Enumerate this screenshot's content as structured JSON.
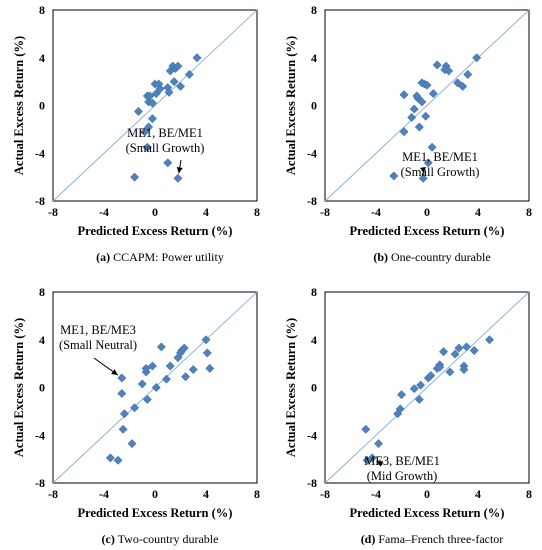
{
  "chart_data": [
    {
      "type": "scatter",
      "panel_letter": "(a)",
      "caption": "CCAPM: Power utility",
      "xlabel": "Predicted Excess Return (%)",
      "ylabel": "Actual Excess Return (%)",
      "xlim": [
        -8,
        8
      ],
      "ylim": [
        -8,
        8
      ],
      "x_ticks": [
        "-8",
        "-4",
        "0",
        "4",
        "8"
      ],
      "y_ticks": [
        "8",
        "4",
        "0",
        "-4",
        "-8"
      ],
      "grid": false,
      "diagonal_line": true,
      "marker_color": "#4f81bd",
      "line_color": "#8db3d9",
      "annotation": {
        "lines": [
          "ME1, BE/ME1",
          "(Small Growth)"
        ],
        "target": [
          1.8,
          -6.1
        ]
      },
      "points": [
        [
          -1.6,
          -6.0
        ],
        [
          1.0,
          -4.8
        ],
        [
          1.8,
          -6.1
        ],
        [
          -1.3,
          -0.5
        ],
        [
          -0.8,
          -2.2
        ],
        [
          -0.5,
          -1.8
        ],
        [
          -0.2,
          -1.1
        ],
        [
          -0.6,
          -3.5
        ],
        [
          -0.6,
          0.8
        ],
        [
          -0.5,
          0.3
        ],
        [
          -0.4,
          0.8
        ],
        [
          -0.2,
          0.2
        ],
        [
          0.0,
          1.8
        ],
        [
          0.3,
          1.8
        ],
        [
          0.4,
          1.4
        ],
        [
          1.0,
          1.5
        ],
        [
          1.1,
          1.1
        ],
        [
          1.2,
          2.9
        ],
        [
          1.4,
          3.3
        ],
        [
          1.5,
          2.0
        ],
        [
          1.6,
          3.1
        ],
        [
          1.8,
          3.3
        ],
        [
          2.0,
          1.6
        ],
        [
          2.7,
          2.6
        ],
        [
          3.3,
          4.0
        ],
        [
          0.1,
          1.0
        ]
      ]
    },
    {
      "type": "scatter",
      "panel_letter": "(b)",
      "caption": "One-country durable",
      "xlabel": "Predicted Excess Return (%)",
      "ylabel": "Actual Excess Return (%)",
      "xlim": [
        -8,
        8
      ],
      "ylim": [
        -8,
        8
      ],
      "x_ticks": [
        "-8",
        "-4",
        "0",
        "4",
        "8"
      ],
      "y_ticks": [
        "8",
        "4",
        "0",
        "-4",
        "-8"
      ],
      "grid": false,
      "diagonal_line": true,
      "marker_color": "#4f81bd",
      "line_color": "#8db3d9",
      "annotation": {
        "lines": [
          "ME1, BE/ME1",
          "(Small Growth)"
        ],
        "target": [
          -0.2,
          -6.1
        ]
      },
      "points": [
        [
          -2.6,
          -5.9
        ],
        [
          -0.3,
          -6.1
        ],
        [
          0.4,
          -3.5
        ],
        [
          0.1,
          -4.8
        ],
        [
          -0.1,
          -0.9
        ],
        [
          -1.8,
          -2.2
        ],
        [
          -1.2,
          -1.0
        ],
        [
          -1.0,
          -0.3
        ],
        [
          -0.7,
          0.6
        ],
        [
          -0.4,
          0.3
        ],
        [
          -1.8,
          0.9
        ],
        [
          -0.8,
          0.8
        ],
        [
          -0.6,
          -1.8
        ],
        [
          -0.4,
          1.9
        ],
        [
          -0.2,
          1.8
        ],
        [
          0.0,
          1.7
        ],
        [
          0.5,
          1.0
        ],
        [
          0.8,
          3.4
        ],
        [
          1.5,
          3.3
        ],
        [
          1.7,
          2.9
        ],
        [
          2.4,
          1.9
        ],
        [
          2.8,
          1.6
        ],
        [
          3.2,
          2.6
        ],
        [
          3.9,
          4.0
        ],
        [
          1.4,
          3.0
        ]
      ]
    },
    {
      "type": "scatter",
      "panel_letter": "(c)",
      "caption": "Two-country durable",
      "xlabel": "Predicted Excess Return (%)",
      "ylabel": "Actual Excess Return (%)",
      "xlim": [
        -8,
        8
      ],
      "ylim": [
        -8,
        8
      ],
      "x_ticks": [
        "-8",
        "-4",
        "0",
        "4",
        "8"
      ],
      "y_ticks": [
        "8",
        "4",
        "0",
        "-4",
        "-8"
      ],
      "grid": false,
      "diagonal_line": true,
      "marker_color": "#4f81bd",
      "line_color": "#8db3d9",
      "annotation": {
        "lines": [
          "ME1, BE/ME3",
          "(Small Neutral)"
        ],
        "target": [
          -2.6,
          0.8
        ]
      },
      "points": [
        [
          -3.5,
          -5.9
        ],
        [
          -2.9,
          -6.1
        ],
        [
          -1.8,
          -4.7
        ],
        [
          -2.5,
          -3.5
        ],
        [
          -2.4,
          -2.2
        ],
        [
          -1.6,
          -1.7
        ],
        [
          -0.6,
          -1.0
        ],
        [
          -2.6,
          -0.5
        ],
        [
          -2.6,
          0.8
        ],
        [
          -1.0,
          0.3
        ],
        [
          -0.7,
          1.3
        ],
        [
          -0.7,
          1.6
        ],
        [
          -0.2,
          1.8
        ],
        [
          0.5,
          3.4
        ],
        [
          0.1,
          0.0
        ],
        [
          0.9,
          0.7
        ],
        [
          1.2,
          1.8
        ],
        [
          1.8,
          2.5
        ],
        [
          2.1,
          3.1
        ],
        [
          2.3,
          3.3
        ],
        [
          2.4,
          0.9
        ],
        [
          3.0,
          1.5
        ],
        [
          4.0,
          4.0
        ],
        [
          4.1,
          2.9
        ],
        [
          4.3,
          1.6
        ],
        [
          2.0,
          2.9
        ]
      ]
    },
    {
      "type": "scatter",
      "panel_letter": "(d)",
      "caption": "Fama–French three-factor",
      "xlabel": "Predicted Excess Return (%)",
      "ylabel": "Actual Excess Return (%)",
      "xlim": [
        -8,
        8
      ],
      "ylim": [
        -8,
        8
      ],
      "x_ticks": [
        "-8",
        "-4",
        "0",
        "4",
        "8"
      ],
      "y_ticks": [
        "8",
        "4",
        "0",
        "-4",
        "-8"
      ],
      "grid": false,
      "diagonal_line": true,
      "marker_color": "#4f81bd",
      "line_color": "#8db3d9",
      "annotation": {
        "lines": [
          "ME3, BE/ME1",
          "(Mid Growth)"
        ],
        "target": [
          -4.3,
          -6.0
        ]
      },
      "points": [
        [
          -4.7,
          -6.1
        ],
        [
          -4.3,
          -5.9
        ],
        [
          -3.8,
          -4.7
        ],
        [
          -4.8,
          -3.5
        ],
        [
          -2.3,
          -2.2
        ],
        [
          -2.1,
          -1.8
        ],
        [
          -2.0,
          -0.6
        ],
        [
          -1.0,
          -0.1
        ],
        [
          -0.6,
          -1.0
        ],
        [
          -0.5,
          0.2
        ],
        [
          0.1,
          0.8
        ],
        [
          0.3,
          1.0
        ],
        [
          0.8,
          1.6
        ],
        [
          1.0,
          1.9
        ],
        [
          1.3,
          3.0
        ],
        [
          1.8,
          1.3
        ],
        [
          2.5,
          3.3
        ],
        [
          2.9,
          1.8
        ],
        [
          2.9,
          1.5
        ],
        [
          3.1,
          3.4
        ],
        [
          3.7,
          3.1
        ],
        [
          4.9,
          4.0
        ],
        [
          1.0,
          1.7
        ],
        [
          2.2,
          2.8
        ]
      ]
    }
  ]
}
